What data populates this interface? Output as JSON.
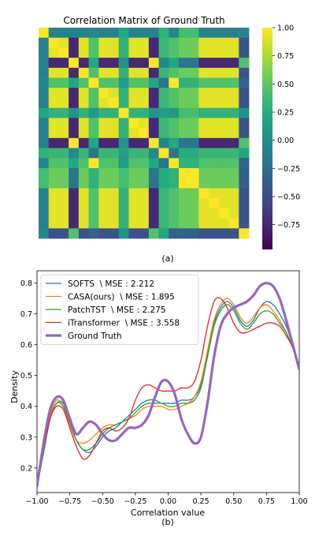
{
  "chart_data": [
    {
      "type": "heatmap",
      "title": "Correlation Matrix of Ground Truth",
      "caption": "(a)",
      "colorscale": "viridis",
      "vmin": -0.97,
      "vmax": 1.0,
      "colorbar_ticks": [
        1.0,
        0.75,
        0.5,
        0.25,
        0.0,
        -0.25,
        -0.5,
        -0.75
      ],
      "colorbar_tick_labels": [
        "1.00",
        "0.75",
        "0.50",
        "0.25",
        "0.00",
        "−0.25",
        "−0.50",
        "−0.75"
      ],
      "grid_size": 21,
      "groups": [
        0,
        1,
        1,
        2,
        1,
        3,
        1,
        1,
        4,
        1,
        1,
        2,
        5,
        3,
        6,
        6,
        1,
        1,
        1,
        1,
        7
      ],
      "group_correlation": [
        [
          1.0,
          -0.1,
          -0.1,
          -0.05,
          0.2,
          0.3,
          0.4,
          -0.05
        ],
        [
          -0.1,
          0.92,
          -0.75,
          0.45,
          0.3,
          0.35,
          0.55,
          -0.45
        ],
        [
          -0.1,
          -0.75,
          1.0,
          0.2,
          0.05,
          -0.05,
          -0.2,
          0.45
        ],
        [
          -0.05,
          0.45,
          0.2,
          1.0,
          0.1,
          -0.2,
          0.3,
          -0.35
        ],
        [
          0.2,
          0.3,
          0.05,
          0.1,
          1.0,
          0.15,
          0.4,
          0.05
        ],
        [
          0.3,
          0.35,
          -0.05,
          -0.2,
          0.15,
          1.0,
          0.25,
          0.2
        ],
        [
          0.4,
          0.55,
          -0.2,
          0.3,
          0.4,
          0.25,
          1.0,
          -0.35
        ],
        [
          -0.05,
          -0.45,
          0.45,
          -0.35,
          0.05,
          0.2,
          -0.35,
          1.0
        ]
      ]
    },
    {
      "type": "line",
      "caption": "(b)",
      "xlabel": "Correlation value",
      "ylabel": "Density",
      "xlim": [
        -1.0,
        1.0
      ],
      "ylim": [
        0.12,
        0.84
      ],
      "xticks": [
        -1.0,
        -0.75,
        -0.5,
        -0.25,
        0.0,
        0.25,
        0.5,
        0.75,
        1.0
      ],
      "xtick_labels": [
        "−1.00",
        "−0.75",
        "−0.50",
        "−0.25",
        "0.00",
        "0.25",
        "0.50",
        "0.75",
        "1.00"
      ],
      "yticks": [
        0.2,
        0.3,
        0.4,
        0.5,
        0.6,
        0.7,
        0.8
      ],
      "ytick_labels": [
        "0.2",
        "0.3",
        "0.4",
        "0.5",
        "0.6",
        "0.7",
        "0.8"
      ],
      "legend_position": "top-left",
      "x": [
        -1.0,
        -0.95,
        -0.9,
        -0.85,
        -0.8,
        -0.75,
        -0.7,
        -0.65,
        -0.6,
        -0.55,
        -0.5,
        -0.45,
        -0.4,
        -0.35,
        -0.3,
        -0.25,
        -0.2,
        -0.15,
        -0.1,
        -0.05,
        0.0,
        0.05,
        0.1,
        0.15,
        0.2,
        0.25,
        0.3,
        0.35,
        0.4,
        0.45,
        0.5,
        0.55,
        0.6,
        0.65,
        0.7,
        0.75,
        0.8,
        0.85,
        0.9,
        0.95,
        1.0
      ],
      "series": [
        {
          "name": "SOFTS  \\ MSE : 2.212",
          "color": "#1f77b4",
          "width": 1.3,
          "values": [
            0.14,
            0.25,
            0.36,
            0.41,
            0.41,
            0.35,
            0.29,
            0.26,
            0.25,
            0.27,
            0.3,
            0.32,
            0.33,
            0.35,
            0.37,
            0.39,
            0.41,
            0.42,
            0.42,
            0.41,
            0.41,
            0.41,
            0.42,
            0.42,
            0.43,
            0.47,
            0.57,
            0.67,
            0.72,
            0.74,
            0.72,
            0.68,
            0.66,
            0.68,
            0.72,
            0.74,
            0.73,
            0.7,
            0.66,
            0.6,
            0.53
          ]
        },
        {
          "name": "CASA(ours)  \\ MSE : 1.895",
          "color": "#ff7f0e",
          "width": 1.3,
          "values": [
            0.14,
            0.26,
            0.37,
            0.42,
            0.4,
            0.34,
            0.29,
            0.28,
            0.29,
            0.31,
            0.33,
            0.34,
            0.34,
            0.35,
            0.36,
            0.37,
            0.39,
            0.4,
            0.4,
            0.4,
            0.39,
            0.39,
            0.4,
            0.41,
            0.43,
            0.48,
            0.58,
            0.68,
            0.73,
            0.75,
            0.73,
            0.69,
            0.67,
            0.69,
            0.72,
            0.73,
            0.71,
            0.68,
            0.64,
            0.59,
            0.53
          ]
        },
        {
          "name": "PatchTST  \\ MSE : 2.275",
          "color": "#2ca02c",
          "width": 1.3,
          "values": [
            0.14,
            0.25,
            0.36,
            0.41,
            0.4,
            0.35,
            0.29,
            0.26,
            0.26,
            0.28,
            0.31,
            0.33,
            0.34,
            0.35,
            0.36,
            0.38,
            0.4,
            0.41,
            0.41,
            0.41,
            0.4,
            0.4,
            0.41,
            0.41,
            0.42,
            0.46,
            0.56,
            0.66,
            0.71,
            0.73,
            0.71,
            0.67,
            0.65,
            0.67,
            0.7,
            0.71,
            0.7,
            0.67,
            0.64,
            0.59,
            0.53
          ]
        },
        {
          "name": "iTransformer  \\ MSE : 3.558",
          "color": "#d62728",
          "width": 1.3,
          "values": [
            0.14,
            0.26,
            0.36,
            0.4,
            0.39,
            0.33,
            0.27,
            0.23,
            0.24,
            0.28,
            0.32,
            0.33,
            0.32,
            0.33,
            0.36,
            0.42,
            0.46,
            0.47,
            0.46,
            0.45,
            0.45,
            0.45,
            0.46,
            0.46,
            0.48,
            0.55,
            0.66,
            0.74,
            0.75,
            0.72,
            0.67,
            0.64,
            0.64,
            0.65,
            0.66,
            0.67,
            0.67,
            0.66,
            0.63,
            0.59,
            0.53
          ]
        },
        {
          "name": "Ground Truth",
          "color": "#9467bd",
          "width": 3.2,
          "values": [
            0.14,
            0.28,
            0.39,
            0.43,
            0.42,
            0.36,
            0.31,
            0.33,
            0.35,
            0.34,
            0.31,
            0.29,
            0.29,
            0.31,
            0.33,
            0.33,
            0.34,
            0.37,
            0.43,
            0.48,
            0.48,
            0.44,
            0.36,
            0.31,
            0.28,
            0.3,
            0.41,
            0.56,
            0.66,
            0.7,
            0.72,
            0.73,
            0.74,
            0.76,
            0.79,
            0.8,
            0.79,
            0.75,
            0.68,
            0.6,
            0.52
          ]
        }
      ]
    }
  ]
}
